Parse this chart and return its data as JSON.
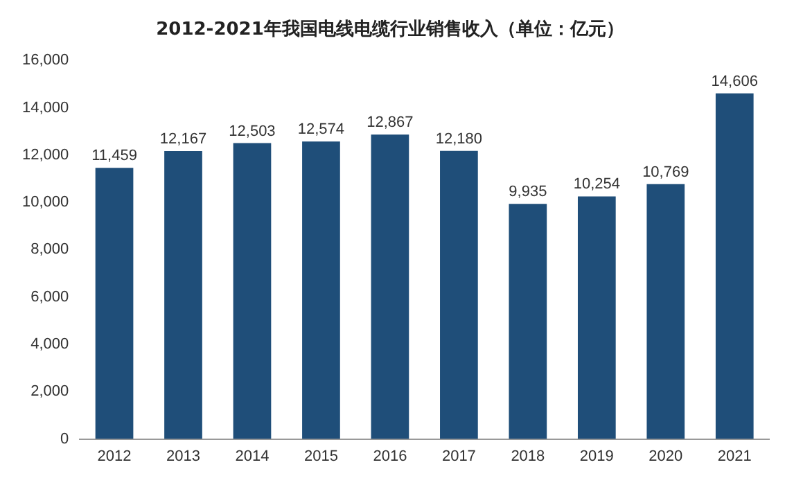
{
  "chart_data": {
    "type": "bar",
    "title": "2012-2021年我国电线电缆行业销售收入（单位：亿元）",
    "categories": [
      "2012",
      "2013",
      "2014",
      "2015",
      "2016",
      "2017",
      "2018",
      "2019",
      "2020",
      "2021"
    ],
    "values": [
      11459,
      12167,
      12503,
      12574,
      12867,
      12180,
      9935,
      10254,
      10769,
      14606
    ],
    "value_labels": [
      "11,459",
      "12,167",
      "12,503",
      "12,574",
      "12,867",
      "12,180",
      "9,935",
      "10,254",
      "10,769",
      "14,606"
    ],
    "color": "#1f4e79",
    "ylim": [
      0,
      16000
    ],
    "yticks": [
      0,
      {
        "value": 2000,
        "label": "2,000"
      },
      {
        "value": 4000,
        "label": "4,000"
      },
      {
        "value": 6000,
        "label": "6,000"
      },
      {
        "value": 8000,
        "label": "8,000"
      },
      {
        "value": 10000,
        "label": "10,000"
      },
      {
        "value": 12000,
        "label": "12,000"
      },
      {
        "value": 14000,
        "label": "14,000"
      },
      {
        "value": 16000,
        "label": "16,000"
      }
    ],
    "grid": false,
    "legend": false
  }
}
